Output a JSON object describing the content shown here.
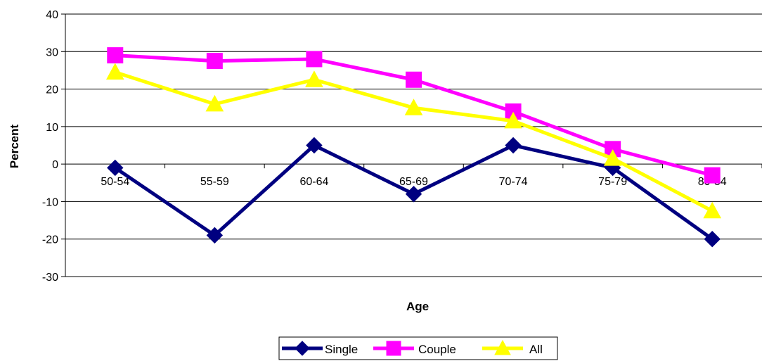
{
  "chart_data": {
    "type": "line",
    "categories": [
      "50-54",
      "55-59",
      "60-64",
      "65-69",
      "70-74",
      "75-79",
      "80-84"
    ],
    "xlabel": "Age",
    "ylabel": "Percent",
    "ylim": [
      -30,
      40
    ],
    "yticks": [
      "40",
      "30",
      "20",
      "10",
      "0",
      "-10",
      "-20",
      "-30"
    ],
    "ytick_values": [
      40,
      30,
      20,
      10,
      0,
      -10,
      -20,
      -30
    ],
    "grid": true,
    "legend_position": "bottom",
    "series": [
      {
        "name": "Single",
        "color": "#000080",
        "marker": "diamond",
        "values": [
          -1,
          -19,
          5,
          -8,
          5,
          -1,
          -20
        ]
      },
      {
        "name": "Couple",
        "color": "#FF00FF",
        "marker": "square",
        "values": [
          29,
          27.5,
          28,
          22.5,
          14,
          4,
          -3
        ]
      },
      {
        "name": "All",
        "color": "#FFFF00",
        "marker": "triangle",
        "values": [
          24.5,
          16,
          22.5,
          15,
          11.5,
          1.5,
          -12.5
        ]
      }
    ]
  }
}
